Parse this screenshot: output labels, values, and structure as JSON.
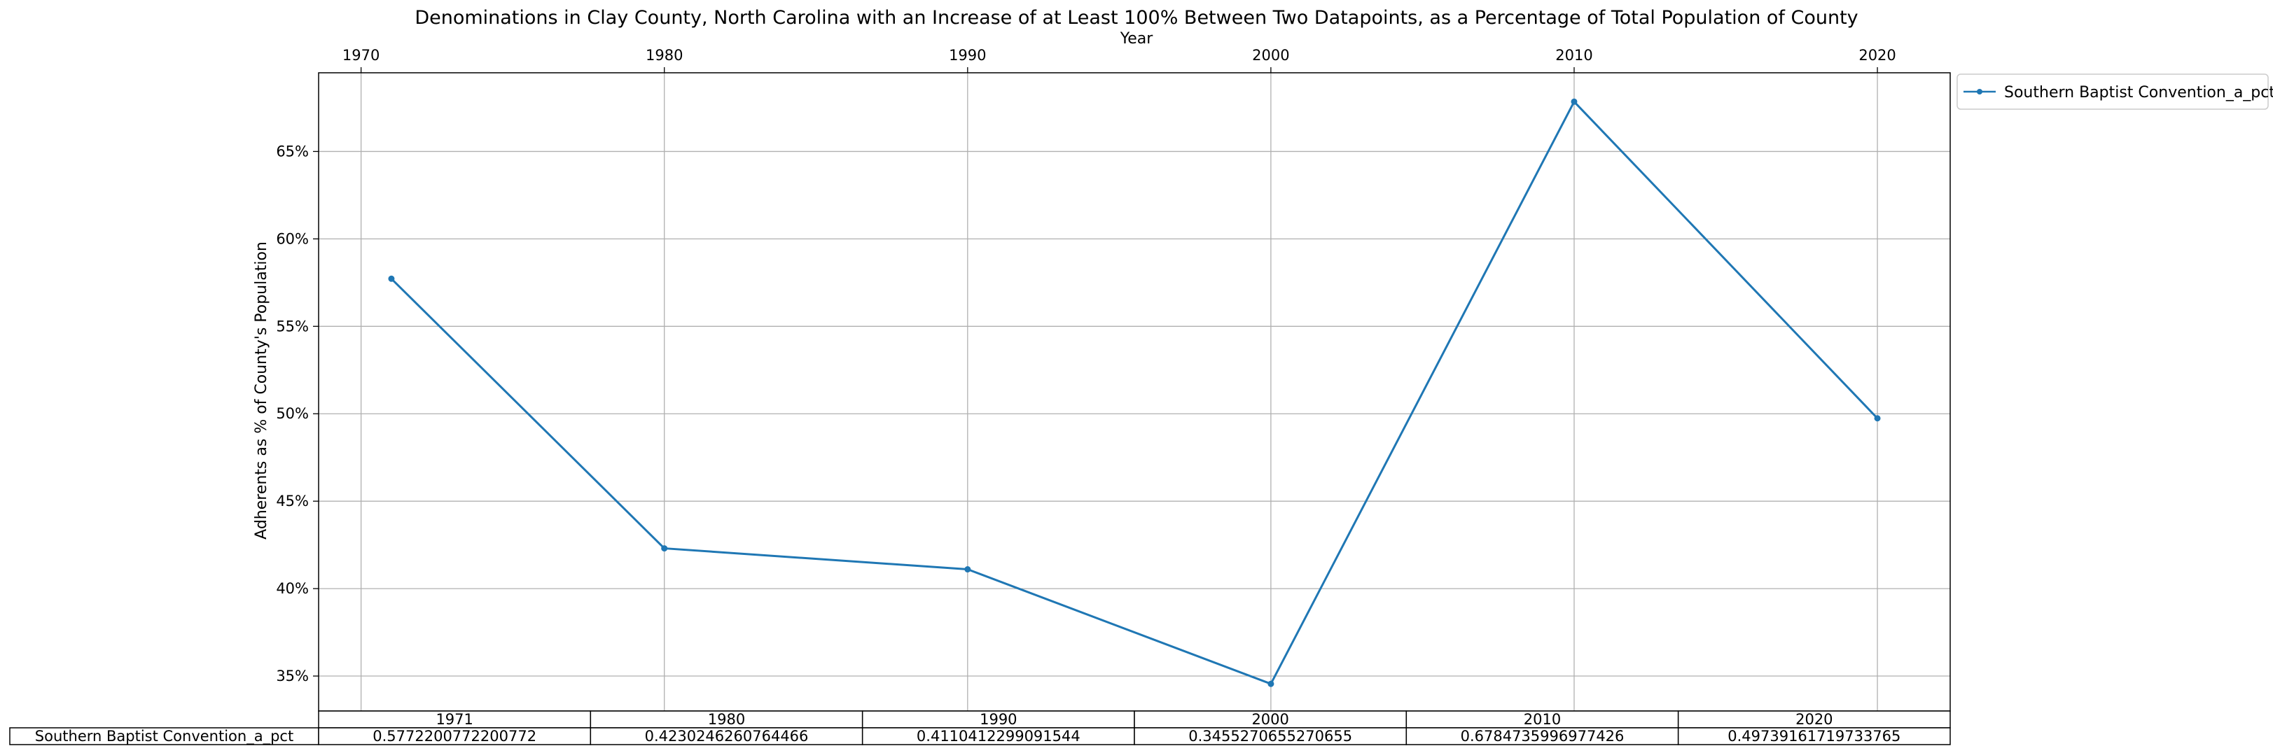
{
  "chart_data": {
    "type": "line",
    "title": "Denominations in Clay County, North Carolina with an Increase of at Least 100% Between Two Datapoints, as a Percentage of Total Population of County",
    "xlabel": "Year",
    "ylabel": "Adherents as % of County's Population",
    "x_ticks": [
      "1970",
      "1980",
      "1990",
      "2000",
      "2010",
      "2020"
    ],
    "y_ticks": [
      "35%",
      "40%",
      "45%",
      "50%",
      "55%",
      "60%",
      "65%"
    ],
    "xlim": [
      1968.6,
      2022.4
    ],
    "ylim": [
      0.33,
      0.695
    ],
    "x_axis_position": "top",
    "grid": true,
    "legend_position": "outside-top-right",
    "series": [
      {
        "name": "Southern Baptist Convention_a_pct",
        "color": "#1f77b4",
        "x": [
          1971,
          1980,
          1990,
          2000,
          2010,
          2020
        ],
        "y": [
          0.5772200772200772,
          0.4230246260764466,
          0.4110412299091544,
          0.3455270655270655,
          0.6784735996977426,
          0.49739161719733765
        ]
      }
    ],
    "table": {
      "columns": [
        "1971",
        "1980",
        "1990",
        "2000",
        "2010",
        "2020"
      ],
      "rows": [
        {
          "label": "Southern Baptist Convention_a_pct",
          "cells": [
            "0.5772200772200772",
            "0.4230246260764466",
            "0.4110412299091544",
            "0.3455270655270655",
            "0.6784735996977426",
            "0.49739161719733765"
          ]
        }
      ]
    }
  }
}
